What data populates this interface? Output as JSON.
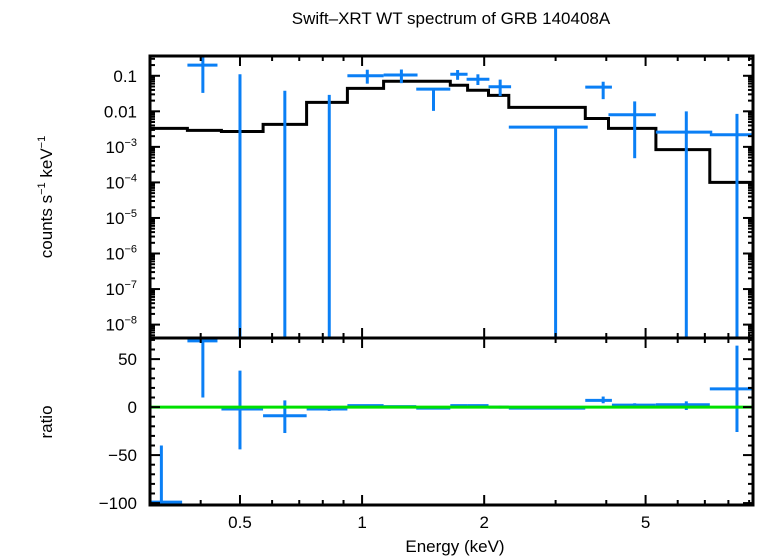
{
  "chart_data": [
    {
      "panel": "spectrum",
      "type": "scatter",
      "title": "Swift–XRT WT spectrum of GRB 140408A",
      "xlabel": "Energy (keV)",
      "ylabel_main": "counts s",
      "ylabel_sup1": "−1",
      "ylabel_mid": " keV",
      "ylabel_sup2": "−1",
      "xscale": "log",
      "yscale": "log",
      "xlim": [
        0.3,
        9.2
      ],
      "ylim": [
        4.2e-09,
        0.36
      ],
      "ytick_labels": [
        {
          "value": 0.1,
          "base": "0.1",
          "exp": ""
        },
        {
          "value": 0.01,
          "base": "0.01",
          "exp": ""
        },
        {
          "value": 0.001,
          "base": "10",
          "exp": "−3"
        },
        {
          "value": 0.0001,
          "base": "10",
          "exp": "−4"
        },
        {
          "value": 1e-05,
          "base": "10",
          "exp": "−5"
        },
        {
          "value": 1e-06,
          "base": "10",
          "exp": "−6"
        },
        {
          "value": 1e-07,
          "base": "10",
          "exp": "−7"
        },
        {
          "value": 1e-08,
          "base": "10",
          "exp": "−8"
        }
      ],
      "data_color": "#0a7ff5",
      "model_color": "#000000",
      "data": [
        {
          "x": 0.405,
          "xlo": 0.371,
          "xhi": 0.44,
          "y": 0.2,
          "ylo": 0.033,
          "yhi": 0.4
        },
        {
          "x": 0.5,
          "xlo": 0.45,
          "xhi": 0.57,
          "y": 1e-10,
          "ylo": 1e-10,
          "yhi": 0.11
        },
        {
          "x": 0.645,
          "xlo": 0.57,
          "xhi": 0.73,
          "y": 1e-10,
          "ylo": 1e-10,
          "yhi": 0.038
        },
        {
          "x": 0.83,
          "xlo": 0.73,
          "xhi": 0.92,
          "y": 1e-10,
          "ylo": 1e-10,
          "yhi": 0.029
        },
        {
          "x": 1.03,
          "xlo": 0.92,
          "xhi": 1.13,
          "y": 0.1,
          "ylo": 0.06,
          "yhi": 0.148
        },
        {
          "x": 1.25,
          "xlo": 1.13,
          "xhi": 1.37,
          "y": 0.105,
          "ylo": 0.062,
          "yhi": 0.15
        },
        {
          "x": 1.5,
          "xlo": 1.36,
          "xhi": 1.65,
          "y": 0.042,
          "ylo": 0.0103,
          "yhi": 0.042
        },
        {
          "x": 1.72,
          "xlo": 1.65,
          "xhi": 1.82,
          "y": 0.11,
          "ylo": 0.077,
          "yhi": 0.145
        },
        {
          "x": 1.93,
          "xlo": 1.81,
          "xhi": 2.06,
          "y": 0.08,
          "ylo": 0.055,
          "yhi": 0.11
        },
        {
          "x": 2.19,
          "xlo": 2.05,
          "xhi": 2.33,
          "y": 0.049,
          "ylo": 0.027,
          "yhi": 0.078
        },
        {
          "x": 3.0,
          "xlo": 2.3,
          "xhi": 3.6,
          "y": 0.0036,
          "ylo": 1e-10,
          "yhi": 0.0036
        },
        {
          "x": 3.93,
          "xlo": 3.55,
          "xhi": 4.13,
          "y": 0.048,
          "ylo": 0.022,
          "yhi": 0.068
        },
        {
          "x": 4.7,
          "xlo": 4.05,
          "xhi": 5.3,
          "y": 0.008,
          "ylo": 0.00048,
          "yhi": 0.019
        },
        {
          "x": 6.3,
          "xlo": 5.3,
          "xhi": 7.3,
          "y": 0.0026,
          "ylo": 1e-10,
          "yhi": 0.01
        },
        {
          "x": 8.4,
          "xlo": 7.2,
          "xhi": 9.2,
          "y": 0.0022,
          "ylo": 1e-10,
          "yhi": 0.0085
        }
      ],
      "model_steps": [
        {
          "xlo": 0.3,
          "xhi": 0.371,
          "y": 0.0033
        },
        {
          "xlo": 0.371,
          "xhi": 0.45,
          "y": 0.0029
        },
        {
          "xlo": 0.45,
          "xhi": 0.57,
          "y": 0.0027
        },
        {
          "xlo": 0.57,
          "xhi": 0.73,
          "y": 0.0043
        },
        {
          "xlo": 0.73,
          "xhi": 0.92,
          "y": 0.0178
        },
        {
          "xlo": 0.92,
          "xhi": 1.13,
          "y": 0.044
        },
        {
          "xlo": 1.13,
          "xhi": 1.36,
          "y": 0.07
        },
        {
          "xlo": 1.36,
          "xhi": 1.65,
          "y": 0.07
        },
        {
          "xlo": 1.65,
          "xhi": 1.82,
          "y": 0.054
        },
        {
          "xlo": 1.82,
          "xhi": 2.05,
          "y": 0.039
        },
        {
          "xlo": 2.05,
          "xhi": 2.3,
          "y": 0.028
        },
        {
          "xlo": 2.3,
          "xhi": 3.55,
          "y": 0.0129
        },
        {
          "xlo": 3.55,
          "xhi": 4.05,
          "y": 0.0063
        },
        {
          "xlo": 4.05,
          "xhi": 5.3,
          "y": 0.0033
        },
        {
          "xlo": 5.3,
          "xhi": 7.2,
          "y": 0.00084
        },
        {
          "xlo": 7.2,
          "xhi": 9.2,
          "y": 0.0001
        }
      ]
    },
    {
      "panel": "ratio",
      "type": "scatter",
      "ylabel": "ratio",
      "xlabel": "Energy (keV)",
      "xscale": "log",
      "xlim": [
        0.3,
        9.2
      ],
      "ylim": [
        -102,
        72
      ],
      "yticks": [
        50,
        0,
        -50,
        -100
      ],
      "ytick_labels": [
        "50",
        "0",
        "−50",
        "−100"
      ],
      "xticks": [
        0.5,
        1,
        2,
        5
      ],
      "xtick_labels": [
        "0.5",
        "1",
        "2",
        "5"
      ],
      "reference_line": {
        "y": 0,
        "color": "#00e000"
      },
      "data_color": "#0a7ff5",
      "data": [
        {
          "x": 0.32,
          "xlo": 0.3,
          "xhi": 0.36,
          "y": -99,
          "ylo": -102,
          "yhi": -40
        },
        {
          "x": 0.405,
          "xlo": 0.371,
          "xhi": 0.44,
          "y": 69,
          "ylo": 10,
          "yhi": 72
        },
        {
          "x": 0.5,
          "xlo": 0.45,
          "xhi": 0.57,
          "y": -2,
          "ylo": -44,
          "yhi": 38
        },
        {
          "x": 0.645,
          "xlo": 0.57,
          "xhi": 0.73,
          "y": -9,
          "ylo": -27,
          "yhi": 7
        },
        {
          "x": 0.83,
          "xlo": 0.73,
          "xhi": 0.92,
          "y": -2,
          "ylo": -4,
          "yhi": 0
        },
        {
          "x": 1.03,
          "xlo": 0.92,
          "xhi": 1.13,
          "y": 1.5,
          "ylo": 0,
          "yhi": 2.5
        },
        {
          "x": 1.25,
          "xlo": 1.13,
          "xhi": 1.36,
          "y": 0.5,
          "ylo": 0,
          "yhi": 1
        },
        {
          "x": 1.5,
          "xlo": 1.36,
          "xhi": 1.65,
          "y": -1,
          "ylo": -1.5,
          "yhi": -0.5
        },
        {
          "x": 1.72,
          "xlo": 1.65,
          "xhi": 1.82,
          "y": 1.5,
          "ylo": 0.5,
          "yhi": 2.5
        },
        {
          "x": 1.93,
          "xlo": 1.82,
          "xhi": 2.05,
          "y": 1.5,
          "ylo": 0.5,
          "yhi": 2.5
        },
        {
          "x": 2.19,
          "xlo": 2.05,
          "xhi": 2.3,
          "y": 0,
          "ylo": -1.5,
          "yhi": 1.5
        },
        {
          "x": 3.0,
          "xlo": 2.3,
          "xhi": 3.55,
          "y": -1,
          "ylo": -2,
          "yhi": 0
        },
        {
          "x": 3.93,
          "xlo": 3.55,
          "xhi": 4.13,
          "y": 7,
          "ylo": 4,
          "yhi": 11
        },
        {
          "x": 4.7,
          "xlo": 4.13,
          "xhi": 5.3,
          "y": 2,
          "ylo": -1,
          "yhi": 4
        },
        {
          "x": 6.3,
          "xlo": 5.3,
          "xhi": 7.2,
          "y": 2.5,
          "ylo": -3,
          "yhi": 6
        },
        {
          "x": 8.4,
          "xlo": 7.2,
          "xhi": 9.2,
          "y": 19,
          "ylo": -26,
          "yhi": 64
        }
      ]
    }
  ]
}
